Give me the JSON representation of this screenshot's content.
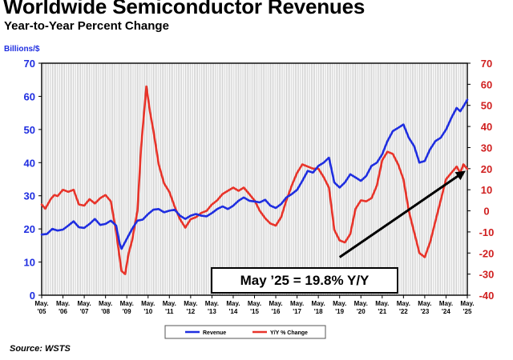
{
  "title": "Worldwide Semiconductor Revenues",
  "subtitle": "Year-to-Year Percent Change",
  "source": "Source: WSTS",
  "colors": {
    "revenue": "#1f2ee0",
    "yoy": "#e8342a",
    "left_axis": "#1f2ee0",
    "right_axis": "#d01f1f",
    "grid": "#9a9a9a",
    "trend_arrow": "#000000"
  },
  "chart_data": {
    "type": "line",
    "left_axis": {
      "label": "Billions/$",
      "range": [
        0,
        70
      ],
      "ticks": [
        "0",
        "10",
        "20",
        "30",
        "40",
        "50",
        "60",
        "70"
      ]
    },
    "right_axis": {
      "label": "",
      "range": [
        -40,
        70
      ],
      "ticks": [
        "-40",
        "-30",
        "-20",
        "-10",
        "0",
        "10",
        "20",
        "30",
        "40",
        "50",
        "60",
        "70"
      ]
    },
    "x_axis": {
      "range": [
        2005.33,
        2025.33
      ],
      "tick_labels": [
        [
          "May.",
          "'05"
        ],
        [
          "May.",
          "'06"
        ],
        [
          "May.",
          "'07"
        ],
        [
          "May.",
          "'08"
        ],
        [
          "May.",
          "'09"
        ],
        [
          "May.",
          "'10"
        ],
        [
          "May.",
          "'11"
        ],
        [
          "May.",
          "'12"
        ],
        [
          "May.",
          "'13"
        ],
        [
          "May.",
          "'14"
        ],
        [
          "May.",
          "'15"
        ],
        [
          "May.",
          "'16"
        ],
        [
          "May.",
          "'17"
        ],
        [
          "May.",
          "'18"
        ],
        [
          "May.",
          "'19"
        ],
        [
          "May.",
          "'20"
        ],
        [
          "May.",
          "'21"
        ],
        [
          "May.",
          "'22"
        ],
        [
          "May.",
          "'23"
        ],
        [
          "May.",
          "'24"
        ],
        [
          "May.",
          "'25"
        ]
      ]
    },
    "grid": "vertical monthly gridlines",
    "legend_placement": "bottom-center",
    "series": [
      {
        "name": "Revenue",
        "axis": "left",
        "points": [
          [
            2005.33,
            18.3
          ],
          [
            2005.58,
            18.5
          ],
          [
            2005.83,
            20.0
          ],
          [
            2006.08,
            19.5
          ],
          [
            2006.33,
            19.8
          ],
          [
            2006.58,
            21.0
          ],
          [
            2006.83,
            22.3
          ],
          [
            2007.08,
            20.5
          ],
          [
            2007.33,
            20.3
          ],
          [
            2007.58,
            21.5
          ],
          [
            2007.83,
            23.0
          ],
          [
            2008.08,
            21.2
          ],
          [
            2008.33,
            21.5
          ],
          [
            2008.58,
            22.5
          ],
          [
            2008.83,
            21.0
          ],
          [
            2009.0,
            15.5
          ],
          [
            2009.08,
            14.0
          ],
          [
            2009.33,
            17.0
          ],
          [
            2009.58,
            20.0
          ],
          [
            2009.83,
            22.5
          ],
          [
            2010.08,
            22.8
          ],
          [
            2010.33,
            24.5
          ],
          [
            2010.58,
            25.8
          ],
          [
            2010.83,
            26.0
          ],
          [
            2011.08,
            25.0
          ],
          [
            2011.33,
            25.5
          ],
          [
            2011.58,
            25.8
          ],
          [
            2011.83,
            24.0
          ],
          [
            2012.08,
            23.0
          ],
          [
            2012.33,
            24.0
          ],
          [
            2012.58,
            24.5
          ],
          [
            2012.83,
            24.0
          ],
          [
            2013.08,
            23.8
          ],
          [
            2013.33,
            24.8
          ],
          [
            2013.58,
            26.0
          ],
          [
            2013.83,
            26.8
          ],
          [
            2014.08,
            26.0
          ],
          [
            2014.33,
            27.0
          ],
          [
            2014.58,
            28.5
          ],
          [
            2014.83,
            29.5
          ],
          [
            2015.08,
            28.5
          ],
          [
            2015.33,
            28.3
          ],
          [
            2015.58,
            28.0
          ],
          [
            2015.83,
            28.8
          ],
          [
            2016.08,
            27.0
          ],
          [
            2016.33,
            26.3
          ],
          [
            2016.58,
            27.5
          ],
          [
            2016.83,
            29.5
          ],
          [
            2017.08,
            30.5
          ],
          [
            2017.33,
            31.8
          ],
          [
            2017.58,
            34.5
          ],
          [
            2017.83,
            37.5
          ],
          [
            2018.08,
            37.0
          ],
          [
            2018.33,
            39.0
          ],
          [
            2018.58,
            40.0
          ],
          [
            2018.83,
            41.5
          ],
          [
            2019.08,
            34.0
          ],
          [
            2019.33,
            32.5
          ],
          [
            2019.58,
            34.0
          ],
          [
            2019.83,
            36.5
          ],
          [
            2020.08,
            35.5
          ],
          [
            2020.33,
            34.5
          ],
          [
            2020.58,
            36.0
          ],
          [
            2020.83,
            39.0
          ],
          [
            2021.08,
            40.0
          ],
          [
            2021.33,
            42.5
          ],
          [
            2021.58,
            46.5
          ],
          [
            2021.83,
            49.5
          ],
          [
            2022.08,
            50.5
          ],
          [
            2022.33,
            51.5
          ],
          [
            2022.58,
            47.5
          ],
          [
            2022.83,
            45.0
          ],
          [
            2023.08,
            40.0
          ],
          [
            2023.33,
            40.5
          ],
          [
            2023.58,
            44.0
          ],
          [
            2023.83,
            46.5
          ],
          [
            2024.08,
            47.5
          ],
          [
            2024.33,
            50.0
          ],
          [
            2024.58,
            53.5
          ],
          [
            2024.83,
            56.5
          ],
          [
            2025.0,
            55.5
          ],
          [
            2025.15,
            57.0
          ],
          [
            2025.33,
            59.0
          ]
        ]
      },
      {
        "name": "Y/Y % Change",
        "axis": "right",
        "points": [
          [
            2005.33,
            3.0
          ],
          [
            2005.5,
            1.0
          ],
          [
            2005.75,
            5.5
          ],
          [
            2005.92,
            7.5
          ],
          [
            2006.08,
            7.0
          ],
          [
            2006.33,
            10.0
          ],
          [
            2006.58,
            9.0
          ],
          [
            2006.83,
            10.0
          ],
          [
            2007.08,
            3.0
          ],
          [
            2007.33,
            2.5
          ],
          [
            2007.58,
            5.5
          ],
          [
            2007.83,
            3.5
          ],
          [
            2008.08,
            6.0
          ],
          [
            2008.33,
            7.5
          ],
          [
            2008.58,
            4.5
          ],
          [
            2008.83,
            -10.0
          ],
          [
            2009.08,
            -28.5
          ],
          [
            2009.25,
            -30.0
          ],
          [
            2009.42,
            -20.0
          ],
          [
            2009.58,
            -14.0
          ],
          [
            2009.83,
            0.0
          ],
          [
            2010.0,
            30.0
          ],
          [
            2010.25,
            59.0
          ],
          [
            2010.42,
            47.0
          ],
          [
            2010.58,
            38.0
          ],
          [
            2010.83,
            22.0
          ],
          [
            2011.08,
            13.0
          ],
          [
            2011.33,
            9.0
          ],
          [
            2011.58,
            2.0
          ],
          [
            2011.83,
            -4.0
          ],
          [
            2012.08,
            -8.0
          ],
          [
            2012.33,
            -4.0
          ],
          [
            2012.58,
            -3.0
          ],
          [
            2012.83,
            -1.0
          ],
          [
            2013.08,
            0.0
          ],
          [
            2013.33,
            3.0
          ],
          [
            2013.58,
            5.0
          ],
          [
            2013.83,
            8.0
          ],
          [
            2014.08,
            9.5
          ],
          [
            2014.33,
            11.0
          ],
          [
            2014.58,
            9.5
          ],
          [
            2014.83,
            11.0
          ],
          [
            2015.08,
            8.0
          ],
          [
            2015.33,
            5.0
          ],
          [
            2015.58,
            0.0
          ],
          [
            2015.83,
            -3.5
          ],
          [
            2016.08,
            -6.0
          ],
          [
            2016.33,
            -7.0
          ],
          [
            2016.58,
            -3.0
          ],
          [
            2016.83,
            5.0
          ],
          [
            2017.08,
            12.0
          ],
          [
            2017.33,
            18.0
          ],
          [
            2017.58,
            22.0
          ],
          [
            2017.83,
            21.0
          ],
          [
            2018.08,
            20.0
          ],
          [
            2018.33,
            20.0
          ],
          [
            2018.58,
            16.0
          ],
          [
            2018.83,
            11.0
          ],
          [
            2019.08,
            -9.0
          ],
          [
            2019.33,
            -14.0
          ],
          [
            2019.58,
            -15.0
          ],
          [
            2019.83,
            -11.0
          ],
          [
            2020.08,
            1.0
          ],
          [
            2020.33,
            5.0
          ],
          [
            2020.58,
            4.5
          ],
          [
            2020.83,
            6.0
          ],
          [
            2021.08,
            12.0
          ],
          [
            2021.33,
            24.0
          ],
          [
            2021.58,
            28.0
          ],
          [
            2021.83,
            27.0
          ],
          [
            2022.08,
            22.0
          ],
          [
            2022.33,
            15.0
          ],
          [
            2022.58,
            0.0
          ],
          [
            2022.83,
            -10.0
          ],
          [
            2023.08,
            -20.0
          ],
          [
            2023.33,
            -22.0
          ],
          [
            2023.58,
            -15.0
          ],
          [
            2023.83,
            -5.0
          ],
          [
            2024.08,
            5.0
          ],
          [
            2024.33,
            15.0
          ],
          [
            2024.58,
            18.0
          ],
          [
            2024.83,
            21.0
          ],
          [
            2025.0,
            18.0
          ],
          [
            2025.15,
            22.0
          ],
          [
            2025.33,
            19.8
          ]
        ]
      }
    ],
    "annotation": {
      "text": "May ’25 = 19.8% Y/Y",
      "trend_arrow": {
        "from": [
          2019.33,
          -22.0
        ],
        "to": [
          2025.25,
          19.0
        ],
        "axis": "right"
      }
    }
  },
  "legend": [
    {
      "label": "Revenue"
    },
    {
      "label": "Y/Y % Change"
    }
  ]
}
